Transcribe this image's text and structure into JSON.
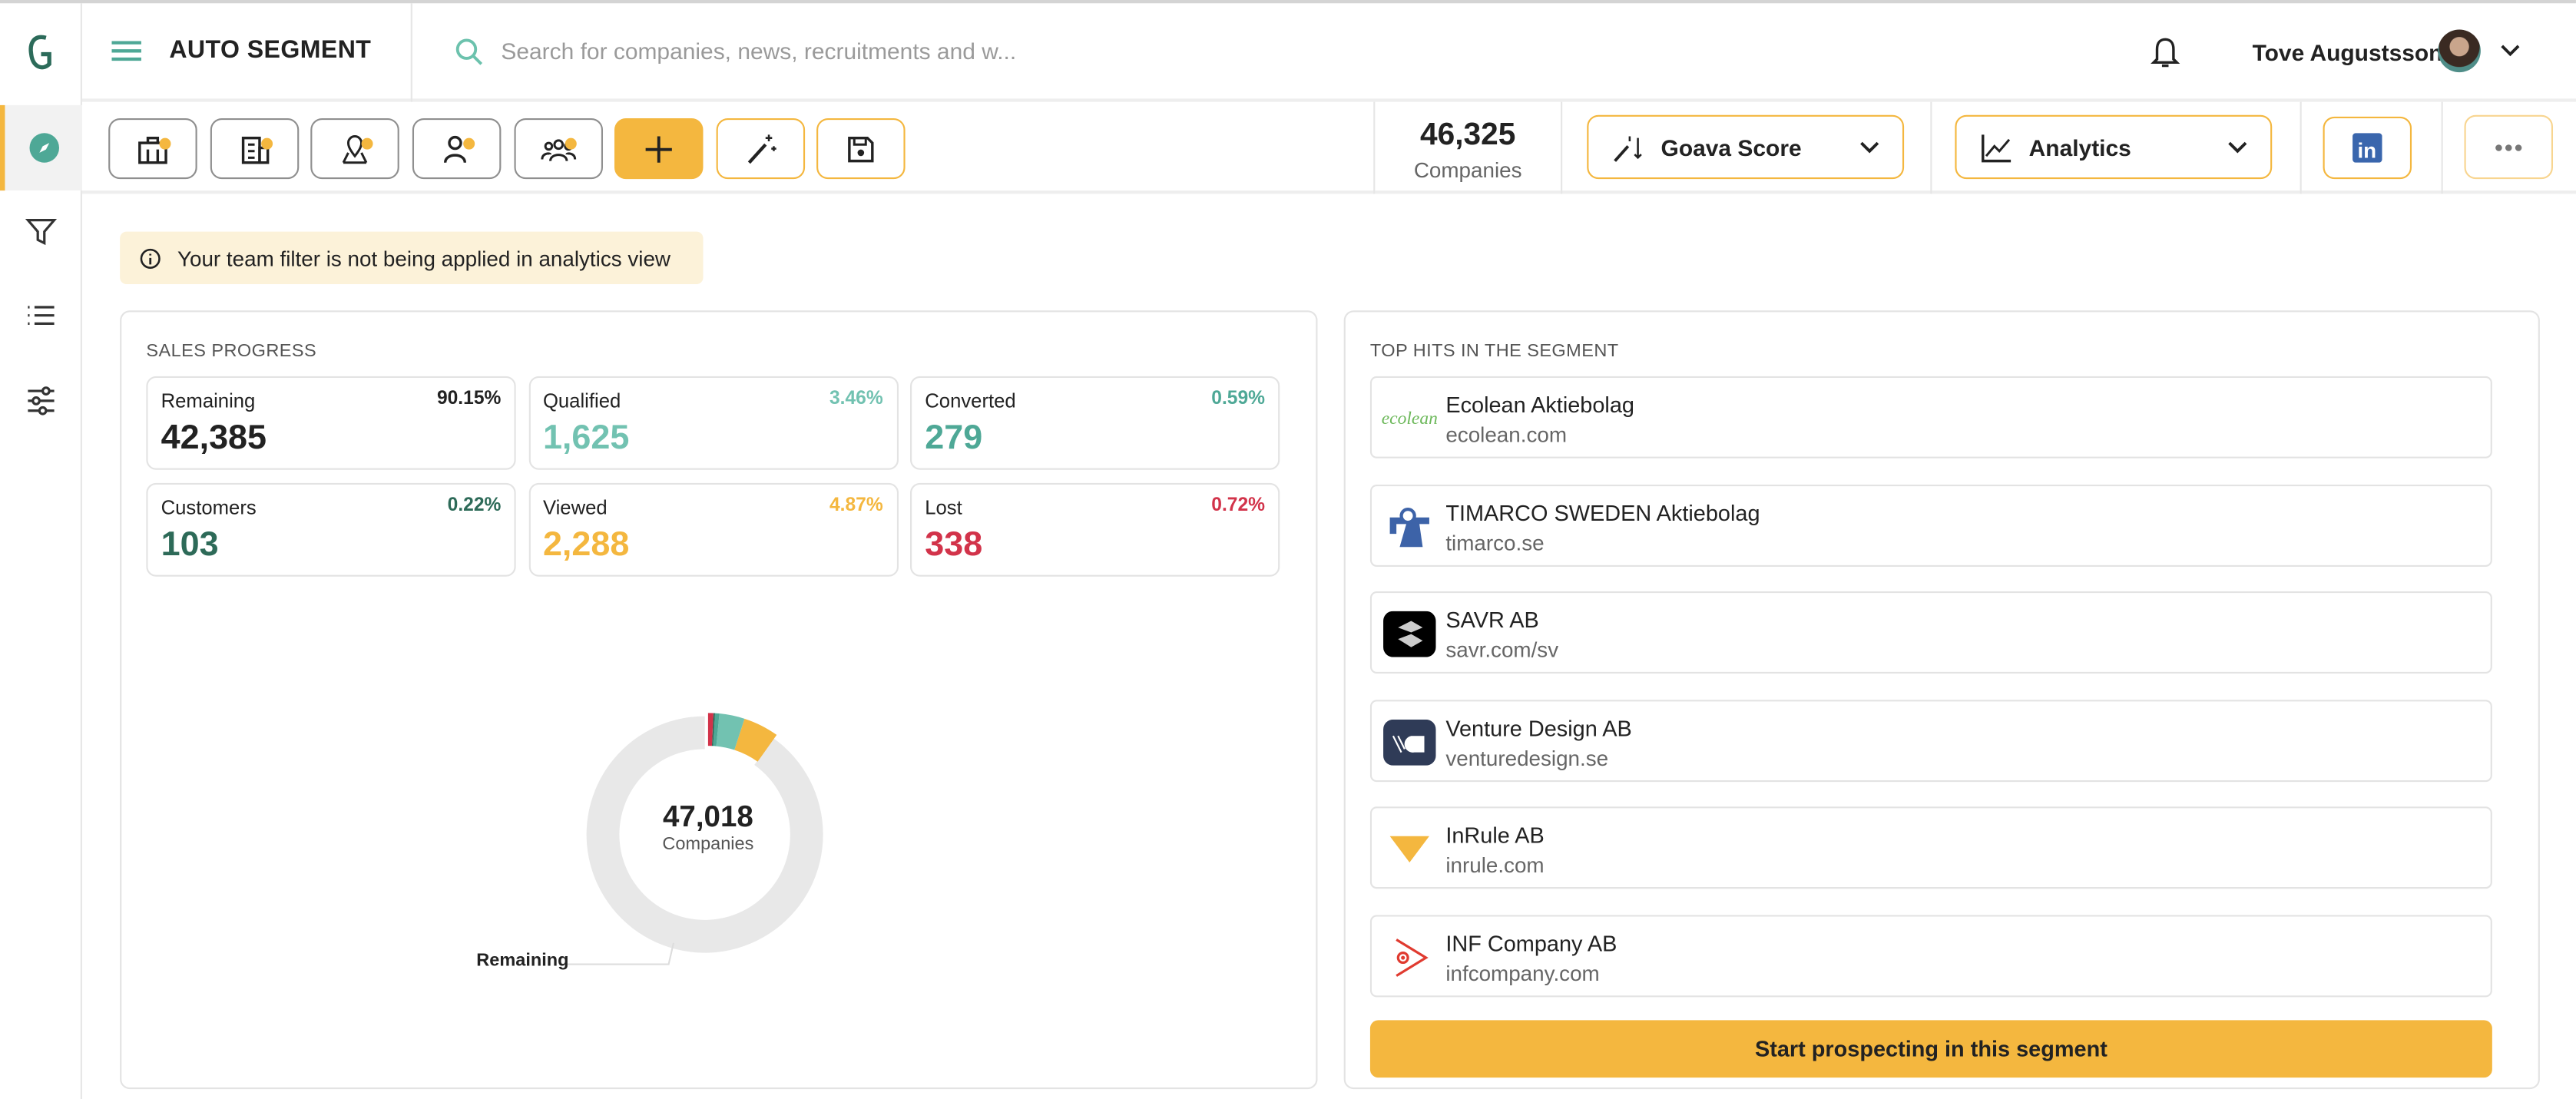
{
  "header": {
    "title": "AUTO SEGMENT",
    "search_placeholder": "Search for companies, news, recruitments and w...",
    "user_name": "Tove Augustsson"
  },
  "toolbar": {
    "count": "46,325",
    "count_label": "Companies",
    "goava_score": "Goava Score",
    "analytics": "Analytics"
  },
  "notice": "Your team filter is not being applied in analytics view",
  "sales": {
    "title": "SALES PROGRESS",
    "stats": [
      {
        "label": "Remaining",
        "pct": "90.15%",
        "value": "42,385",
        "color": "#222222"
      },
      {
        "label": "Qualified",
        "pct": "3.46%",
        "value": "1,625",
        "color": "#72c2b1"
      },
      {
        "label": "Converted",
        "pct": "0.59%",
        "value": "279",
        "color": "#4ea896"
      },
      {
        "label": "Customers",
        "pct": "0.22%",
        "value": "103",
        "color": "#2d6a58"
      },
      {
        "label": "Viewed",
        "pct": "4.87%",
        "value": "2,288",
        "color": "#f4b73f"
      },
      {
        "label": "Lost",
        "pct": "0.72%",
        "value": "338",
        "color": "#d2334a"
      }
    ]
  },
  "chart_data": {
    "type": "pie",
    "title": "",
    "center_value": "47,018",
    "center_label": "Companies",
    "callout_label": "Remaining",
    "slices": [
      {
        "name": "Lost",
        "value": 338,
        "color": "#d2334a"
      },
      {
        "name": "Customers",
        "value": 103,
        "color": "#2d6a58"
      },
      {
        "name": "Converted",
        "value": 279,
        "color": "#4ea896"
      },
      {
        "name": "Qualified",
        "value": 1625,
        "color": "#72c2b1"
      },
      {
        "name": "Viewed",
        "value": 2288,
        "color": "#f4b73f"
      },
      {
        "name": "Remaining",
        "value": 42385,
        "color": "#e8e8e8"
      }
    ]
  },
  "tophits": {
    "title": "TOP HITS IN THE SEGMENT",
    "companies": [
      {
        "name": "Ecolean Aktiebolag",
        "domain": "ecolean.com",
        "logo": "ecolean"
      },
      {
        "name": "TIMARCO SWEDEN Aktiebolag",
        "domain": "timarco.se",
        "logo": "timarco"
      },
      {
        "name": "SAVR AB",
        "domain": "savr.com/sv",
        "logo": "savr"
      },
      {
        "name": "Venture Design AB",
        "domain": "venturedesign.se",
        "logo": "venture"
      },
      {
        "name": "InRule AB",
        "domain": "inrule.com",
        "logo": "inrule"
      },
      {
        "name": "INF Company AB",
        "domain": "infcompany.com",
        "logo": "inf"
      }
    ],
    "cta": "Start prospecting in this segment"
  }
}
